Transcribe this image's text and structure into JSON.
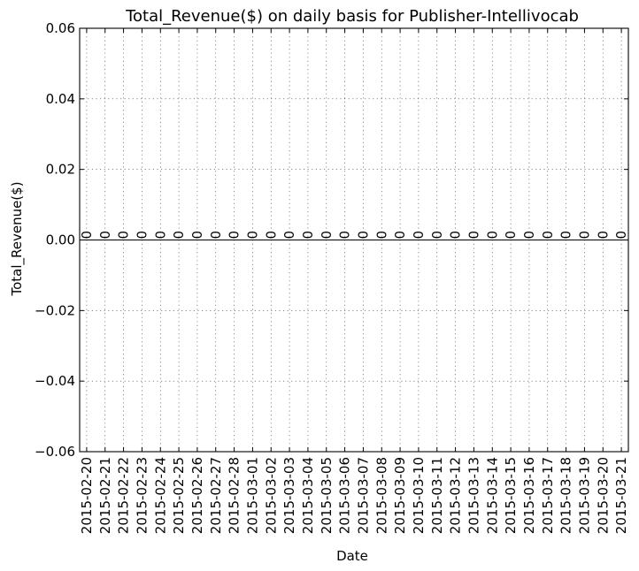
{
  "chart_data": {
    "type": "bar",
    "title": "Total_Revenue($) on daily basis for Publisher-Intellivocab",
    "xlabel": "Date",
    "ylabel": "Total_Revenue($)",
    "ylim": [
      -0.06,
      0.06
    ],
    "yticks": [
      -0.06,
      -0.04,
      -0.02,
      0.0,
      0.02,
      0.04,
      0.06
    ],
    "ytick_labels": [
      "−0.06",
      "−0.04",
      "−0.02",
      "0.00",
      "0.02",
      "0.04",
      "0.06"
    ],
    "grid": true,
    "categories": [
      "2015-02-20",
      "2015-02-21",
      "2015-02-22",
      "2015-02-23",
      "2015-02-24",
      "2015-02-25",
      "2015-02-26",
      "2015-02-27",
      "2015-02-28",
      "2015-03-01",
      "2015-03-02",
      "2015-03-03",
      "2015-03-04",
      "2015-03-05",
      "2015-03-06",
      "2015-03-07",
      "2015-03-08",
      "2015-03-09",
      "2015-03-10",
      "2015-03-11",
      "2015-03-12",
      "2015-03-13",
      "2015-03-14",
      "2015-03-15",
      "2015-03-16",
      "2015-03-17",
      "2015-03-18",
      "2015-03-19",
      "2015-03-20",
      "2015-03-21"
    ],
    "values": [
      0,
      0,
      0,
      0,
      0,
      0,
      0,
      0,
      0,
      0,
      0,
      0,
      0,
      0,
      0,
      0,
      0,
      0,
      0,
      0,
      0,
      0,
      0,
      0,
      0,
      0,
      0,
      0,
      0,
      0
    ],
    "data_labels": [
      "0",
      "0",
      "0",
      "0",
      "0",
      "0",
      "0",
      "0",
      "0",
      "0",
      "0",
      "0",
      "0",
      "0",
      "0",
      "0",
      "0",
      "0",
      "0",
      "0",
      "0",
      "0",
      "0",
      "0",
      "0",
      "0",
      "0",
      "0",
      "0",
      "0"
    ]
  }
}
